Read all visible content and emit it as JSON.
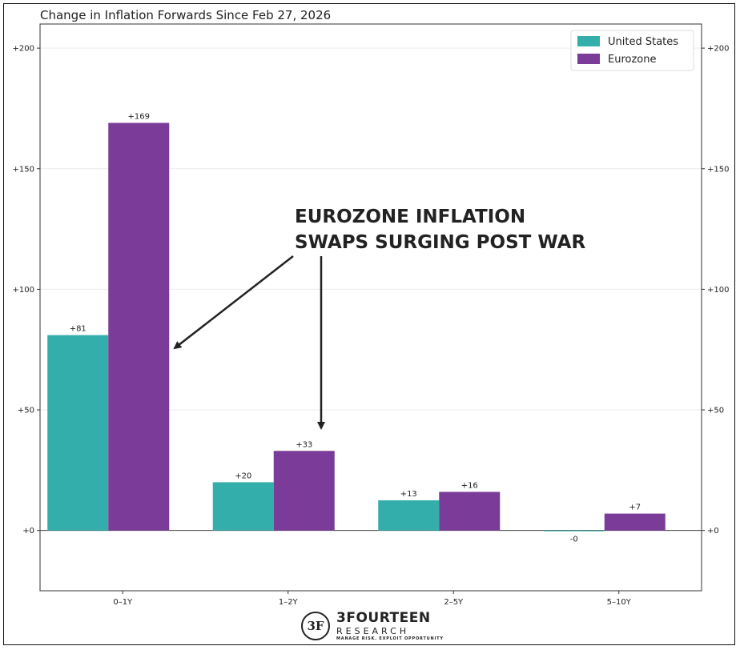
{
  "chart_data": {
    "type": "bar",
    "title": "Change in Inflation Forwards Since Feb 27, 2026",
    "categories": [
      "0–1Y",
      "1–2Y",
      "2–5Y",
      "5–10Y"
    ],
    "series": [
      {
        "name": "United States",
        "color": "#33aeaa",
        "values": [
          81,
          20,
          12.5,
          -0.3
        ],
        "labels": [
          "+81",
          "+20",
          "+13",
          "-0"
        ]
      },
      {
        "name": "Eurozone",
        "color": "#7b3b98",
        "values": [
          169,
          33,
          16,
          7
        ],
        "labels": [
          "+169",
          "+33",
          "+16",
          "+7"
        ]
      }
    ],
    "ylim": [
      -25,
      210
    ],
    "yticks": [
      0,
      50,
      100,
      150,
      200
    ],
    "ytick_labels": [
      "+0",
      "+50",
      "+100",
      "+150",
      "+200"
    ],
    "xlabel": "",
    "ylabel": "",
    "grid": true,
    "legend_position": "top-right",
    "annotation": {
      "lines": [
        "EUROZONE INFLATION",
        "SWAPS SURGING POST WAR"
      ]
    }
  },
  "branding": {
    "logo_mark": "3F",
    "name": "3FOURTEEN",
    "sub": "RESEARCH",
    "tagline": "MANAGE RISK. EXPLOIT OPPORTUNITY"
  }
}
